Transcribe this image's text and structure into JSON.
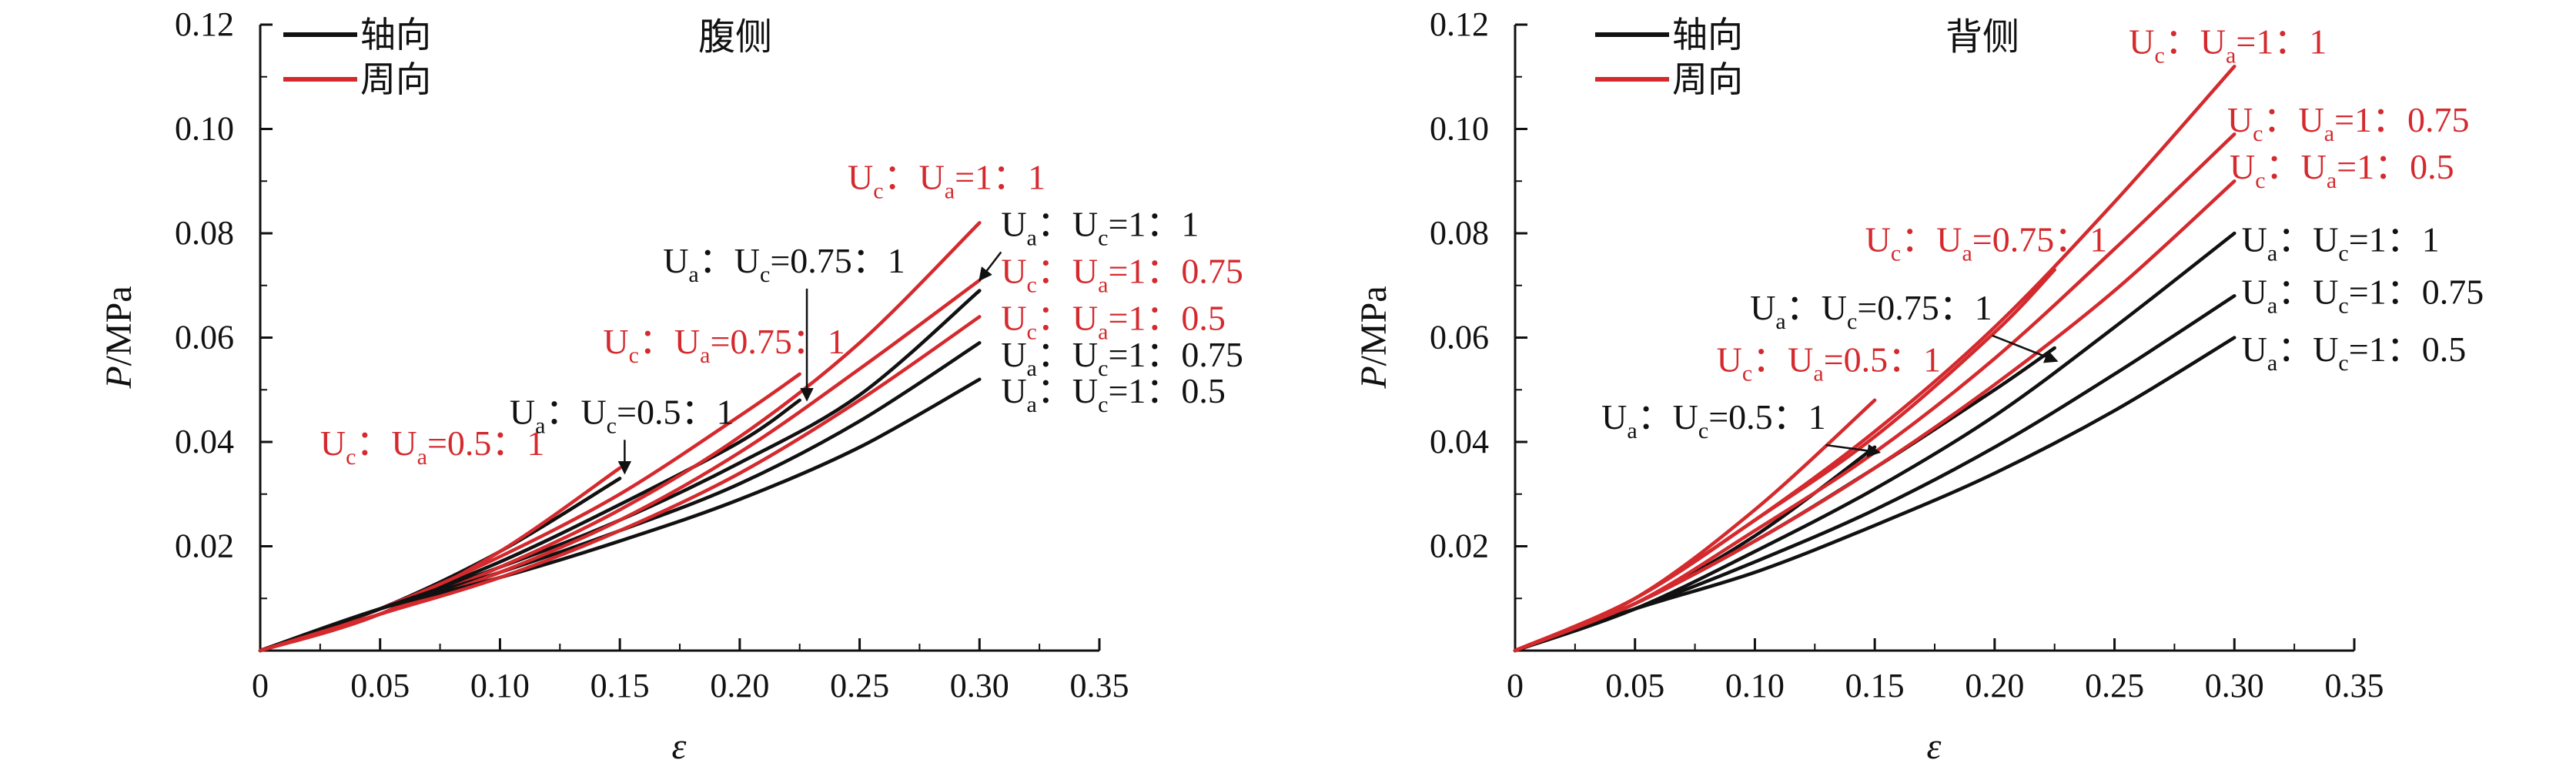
{
  "colors": {
    "axial": "#111111",
    "circumferential": "#d42a2e",
    "axis": "#111111"
  },
  "legend": {
    "axial_label": "轴向",
    "circ_label": "周向"
  },
  "chart_data": [
    {
      "type": "line",
      "title": "腹侧",
      "xlabel": "ε",
      "ylabel": "P/MPa",
      "xlim": [
        0,
        0.35
      ],
      "ylim": [
        0,
        0.12
      ],
      "xticks": [
        "0",
        "0.05",
        "0.10",
        "0.15",
        "0.20",
        "0.25",
        "0.30",
        "0.35"
      ],
      "yticks": [
        "0.02",
        "0.04",
        "0.06",
        "0.08",
        "0.10",
        "0.12"
      ],
      "legend_position": "top-left",
      "series": [
        {
          "group": "axial",
          "x": [
            0,
            0.05,
            0.1,
            0.15
          ],
          "y": [
            0,
            0.008,
            0.019,
            0.033
          ]
        },
        {
          "group": "circumferential",
          "x": [
            0,
            0.05,
            0.1,
            0.15
          ],
          "y": [
            0,
            0.007,
            0.019,
            0.035
          ]
        },
        {
          "group": "axial",
          "x": [
            0,
            0.05,
            0.1,
            0.15,
            0.2,
            0.225
          ],
          "y": [
            0,
            0.008,
            0.017,
            0.028,
            0.04,
            0.048
          ]
        },
        {
          "group": "circumferential",
          "x": [
            0,
            0.05,
            0.1,
            0.15,
            0.2,
            0.225
          ],
          "y": [
            0,
            0.008,
            0.018,
            0.03,
            0.045,
            0.053
          ]
        },
        {
          "group": "axial",
          "x": [
            0,
            0.05,
            0.1,
            0.15,
            0.2,
            0.25,
            0.3
          ],
          "y": [
            0,
            0.008,
            0.016,
            0.025,
            0.036,
            0.049,
            0.069
          ]
        },
        {
          "group": "circumferential",
          "x": [
            0,
            0.05,
            0.1,
            0.15,
            0.2,
            0.25,
            0.3
          ],
          "y": [
            0,
            0.007,
            0.016,
            0.027,
            0.041,
            0.059,
            0.082
          ]
        },
        {
          "group": "axial",
          "x": [
            0,
            0.05,
            0.1,
            0.15,
            0.2,
            0.25,
            0.3
          ],
          "y": [
            0,
            0.008,
            0.015,
            0.023,
            0.032,
            0.044,
            0.059
          ]
        },
        {
          "group": "circumferential",
          "x": [
            0,
            0.05,
            0.1,
            0.15,
            0.2,
            0.25,
            0.3
          ],
          "y": [
            0,
            0.007,
            0.015,
            0.025,
            0.038,
            0.054,
            0.071
          ]
        },
        {
          "group": "axial",
          "x": [
            0,
            0.05,
            0.1,
            0.15,
            0.2,
            0.25,
            0.3
          ],
          "y": [
            0,
            0.008,
            0.014,
            0.021,
            0.029,
            0.039,
            0.052
          ]
        },
        {
          "group": "circumferential",
          "x": [
            0,
            0.05,
            0.1,
            0.15,
            0.2,
            0.25,
            0.3
          ],
          "y": [
            0,
            0.007,
            0.014,
            0.023,
            0.034,
            0.048,
            0.064
          ]
        }
      ],
      "annotations": [
        {
          "main1": "U",
          "sub1": "c",
          "mid": "：U",
          "sub2": "a",
          "rest": "=0.5：1",
          "color": "#d42a2e",
          "ax": 0.025,
          "ay": 0.0375,
          "arrow": false
        },
        {
          "main1": "U",
          "sub1": "a",
          "mid": "：U",
          "sub2": "c",
          "rest": "=0.5：1",
          "color": "#111111",
          "ax": 0.104,
          "ay": 0.0435,
          "arrow": true,
          "tx": 0.152,
          "ty": 0.034
        },
        {
          "main1": "U",
          "sub1": "c",
          "mid": "：U",
          "sub2": "a",
          "rest": "=0.75：1",
          "color": "#d42a2e",
          "ax": 0.143,
          "ay": 0.057,
          "arrow": false
        },
        {
          "main1": "U",
          "sub1": "a",
          "mid": "：U",
          "sub2": "c",
          "rest": "=0.75：1",
          "color": "#111111",
          "ax": 0.168,
          "ay": 0.0725,
          "arrow": true,
          "tx": 0.228,
          "ty": 0.048
        },
        {
          "main1": "U",
          "sub1": "c",
          "mid": "：U",
          "sub2": "a",
          "rest": "=1：1",
          "color": "#d42a2e",
          "ax": 0.245,
          "ay": 0.0885,
          "arrow": false
        },
        {
          "main1": "U",
          "sub1": "a",
          "mid": "：U",
          "sub2": "c",
          "rest": "=1：1",
          "color": "#111111",
          "ax": 0.309,
          "ay": 0.0795,
          "arrow": true,
          "tx": 0.3,
          "ty": 0.071
        },
        {
          "main1": "U",
          "sub1": "c",
          "mid": "：U",
          "sub2": "a",
          "rest": "=1：0.75",
          "color": "#d42a2e",
          "ax": 0.309,
          "ay": 0.0705,
          "arrow": false
        },
        {
          "main1": "U",
          "sub1": "c",
          "mid": "：U",
          "sub2": "a",
          "rest": "=1：0.5",
          "color": "#d42a2e",
          "ax": 0.309,
          "ay": 0.0615,
          "arrow": false
        },
        {
          "main1": "U",
          "sub1": "a",
          "mid": "：U",
          "sub2": "c",
          "rest": "=1：0.75",
          "color": "#111111",
          "ax": 0.309,
          "ay": 0.0545,
          "arrow": false
        },
        {
          "main1": "U",
          "sub1": "a",
          "mid": "：U",
          "sub2": "c",
          "rest": "=1：0.5",
          "color": "#111111",
          "ax": 0.309,
          "ay": 0.0475,
          "arrow": false
        }
      ]
    },
    {
      "type": "line",
      "title": "背侧",
      "xlabel": "ε",
      "ylabel": "P/MPa",
      "xlim": [
        0,
        0.35
      ],
      "ylim": [
        0,
        0.12
      ],
      "xticks": [
        "0",
        "0.05",
        "0.10",
        "0.15",
        "0.20",
        "0.25",
        "0.30",
        "0.35"
      ],
      "yticks": [
        "0.02",
        "0.04",
        "0.06",
        "0.08",
        "0.10",
        "0.12"
      ],
      "legend_position": "top-left",
      "series": [
        {
          "group": "axial",
          "x": [
            0,
            0.05,
            0.1,
            0.15
          ],
          "y": [
            0,
            0.009,
            0.022,
            0.039
          ]
        },
        {
          "group": "circumferential",
          "x": [
            0,
            0.05,
            0.1,
            0.15
          ],
          "y": [
            0,
            0.01,
            0.027,
            0.048
          ]
        },
        {
          "group": "axial",
          "x": [
            0,
            0.05,
            0.1,
            0.15,
            0.2,
            0.225
          ],
          "y": [
            0,
            0.009,
            0.021,
            0.035,
            0.05,
            0.058
          ]
        },
        {
          "group": "circumferential",
          "x": [
            0,
            0.05,
            0.1,
            0.15,
            0.2,
            0.225
          ],
          "y": [
            0,
            0.01,
            0.025,
            0.041,
            0.061,
            0.073
          ]
        },
        {
          "group": "axial",
          "x": [
            0,
            0.05,
            0.1,
            0.15,
            0.2,
            0.25,
            0.3
          ],
          "y": [
            0,
            0.008,
            0.019,
            0.031,
            0.045,
            0.062,
            0.08
          ]
        },
        {
          "group": "circumferential",
          "x": [
            0,
            0.05,
            0.1,
            0.15,
            0.2,
            0.25,
            0.3
          ],
          "y": [
            0,
            0.01,
            0.025,
            0.042,
            0.062,
            0.086,
            0.112
          ]
        },
        {
          "group": "axial",
          "x": [
            0,
            0.05,
            0.1,
            0.15,
            0.2,
            0.25,
            0.3
          ],
          "y": [
            0,
            0.008,
            0.017,
            0.027,
            0.039,
            0.053,
            0.068
          ]
        },
        {
          "group": "circumferential",
          "x": [
            0,
            0.05,
            0.1,
            0.15,
            0.2,
            0.25,
            0.3
          ],
          "y": [
            0,
            0.009,
            0.023,
            0.038,
            0.056,
            0.077,
            0.099
          ]
        },
        {
          "group": "axial",
          "x": [
            0,
            0.05,
            0.1,
            0.15,
            0.2,
            0.25,
            0.3
          ],
          "y": [
            0,
            0.008,
            0.015,
            0.024,
            0.034,
            0.046,
            0.06
          ]
        },
        {
          "group": "circumferential",
          "x": [
            0,
            0.05,
            0.1,
            0.15,
            0.2,
            0.25,
            0.3
          ],
          "y": [
            0,
            0.009,
            0.021,
            0.035,
            0.051,
            0.069,
            0.09
          ]
        }
      ],
      "annotations": [
        {
          "main1": "U",
          "sub1": "c",
          "mid": "：U",
          "sub2": "a",
          "rest": "=1：1",
          "color": "#d42a2e",
          "ax": 0.256,
          "ay": 0.1145,
          "arrow": false
        },
        {
          "main1": "U",
          "sub1": "c",
          "mid": "：U",
          "sub2": "a",
          "rest": "=1：0.75",
          "color": "#d42a2e",
          "ax": 0.297,
          "ay": 0.0995,
          "arrow": false
        },
        {
          "main1": "U",
          "sub1": "c",
          "mid": "：U",
          "sub2": "a",
          "rest": "=1：0.5",
          "color": "#d42a2e",
          "ax": 0.298,
          "ay": 0.0905,
          "arrow": false
        },
        {
          "main1": "U",
          "sub1": "c",
          "mid": "：U",
          "sub2": "a",
          "rest": "=0.75：1",
          "color": "#d42a2e",
          "ax": 0.146,
          "ay": 0.0765,
          "arrow": false
        },
        {
          "main1": "U",
          "sub1": "a",
          "mid": "：U",
          "sub2": "c",
          "rest": "=1：1",
          "color": "#111111",
          "ax": 0.303,
          "ay": 0.0765,
          "arrow": false
        },
        {
          "main1": "U",
          "sub1": "a",
          "mid": "：U",
          "sub2": "c",
          "rest": "=0.75：1",
          "color": "#111111",
          "ax": 0.098,
          "ay": 0.0635,
          "arrow": true,
          "tx": 0.226,
          "ty": 0.0555
        },
        {
          "main1": "U",
          "sub1": "a",
          "mid": "：U",
          "sub2": "c",
          "rest": "=1：0.75",
          "color": "#111111",
          "ax": 0.303,
          "ay": 0.0665,
          "arrow": false
        },
        {
          "main1": "U",
          "sub1": "c",
          "mid": "：U",
          "sub2": "a",
          "rest": "=0.5：1",
          "color": "#d42a2e",
          "ax": 0.084,
          "ay": 0.0535,
          "arrow": false
        },
        {
          "main1": "U",
          "sub1": "a",
          "mid": "：U",
          "sub2": "c",
          "rest": "=1：0.5",
          "color": "#111111",
          "ax": 0.303,
          "ay": 0.0555,
          "arrow": false
        },
        {
          "main1": "U",
          "sub1": "a",
          "mid": "：U",
          "sub2": "c",
          "rest": "=0.5：1",
          "color": "#111111",
          "ax": 0.036,
          "ay": 0.0425,
          "arrow": true,
          "tx": 0.152,
          "ty": 0.038
        }
      ]
    }
  ]
}
